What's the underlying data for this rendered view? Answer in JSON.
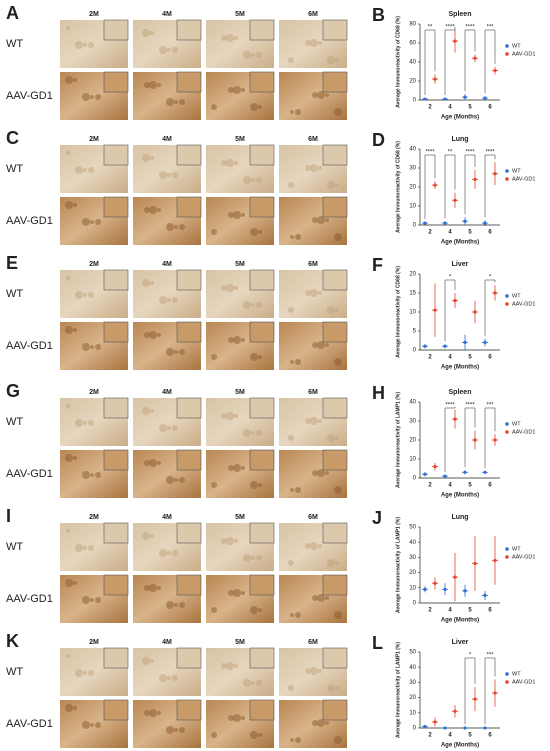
{
  "figure": {
    "image_panels": [
      {
        "letter": "A",
        "columns": [
          "2M",
          "4M",
          "5M",
          "6M"
        ],
        "rows": [
          "WT",
          "AAV-GD1"
        ]
      },
      {
        "letter": "C",
        "columns": [
          "2M",
          "4M",
          "5M",
          "6M"
        ],
        "rows": [
          "WT",
          "AAV-GD1"
        ]
      },
      {
        "letter": "E",
        "columns": [
          "2M",
          "4M",
          "5M",
          "6M"
        ],
        "rows": [
          "WT",
          "AAV-GD1"
        ]
      },
      {
        "letter": "G",
        "columns": [
          "2M",
          "4M",
          "5M",
          "6M"
        ],
        "rows": [
          "WT",
          "AAV-GD1"
        ]
      },
      {
        "letter": "I",
        "columns": [
          "2M",
          "4M",
          "5M",
          "6M"
        ],
        "rows": [
          "WT",
          "AAV-GD1"
        ]
      },
      {
        "letter": "K",
        "columns": [
          "2M",
          "4M",
          "5M",
          "6M"
        ],
        "rows": [
          "WT",
          "AAV-GD1"
        ]
      }
    ]
  },
  "chart_data": [
    {
      "type": "dot",
      "panel_label": "B",
      "title": "Spleen",
      "x_label": "Age (Months)",
      "y_label": "Average Immunoreactivity of CD68 (%)",
      "categories": [
        "2",
        "4",
        "5",
        "6"
      ],
      "ylim": [
        0,
        80
      ],
      "yticks": [
        0,
        20,
        40,
        60,
        80
      ],
      "series": [
        {
          "name": "WT",
          "color": "#2f6fd6",
          "values": [
            1,
            1,
            3,
            2
          ],
          "errors": [
            1,
            1,
            3,
            2
          ]
        },
        {
          "name": "AAV-GD1",
          "color": "#e8432b",
          "values": [
            22,
            62,
            44,
            31
          ],
          "errors": [
            5,
            12,
            4,
            4
          ]
        }
      ],
      "significance": [
        "**",
        "****",
        "****",
        "***"
      ]
    },
    {
      "type": "dot",
      "panel_label": "D",
      "title": "Lung",
      "x_label": "Age (Months)",
      "y_label": "Average Immunoreactivity of CD68 (%)",
      "categories": [
        "2",
        "4",
        "5",
        "6"
      ],
      "ylim": [
        0,
        40
      ],
      "yticks": [
        0,
        10,
        20,
        30,
        40
      ],
      "series": [
        {
          "name": "WT",
          "color": "#2f6fd6",
          "values": [
            1,
            1,
            2,
            1
          ],
          "errors": [
            0.5,
            1,
            2,
            1.5
          ]
        },
        {
          "name": "AAV-GD1",
          "color": "#e8432b",
          "values": [
            21,
            13,
            24,
            27
          ],
          "errors": [
            2,
            4,
            5,
            6
          ]
        }
      ],
      "significance": [
        "****",
        "**",
        "****",
        "****"
      ]
    },
    {
      "type": "dot",
      "panel_label": "F",
      "title": "Liver",
      "x_label": "Age (Months)",
      "y_label": "Average Immunoreactivity of CD68 (%)",
      "categories": [
        "2",
        "4",
        "5",
        "6"
      ],
      "ylim": [
        0,
        20
      ],
      "yticks": [
        0,
        5,
        10,
        15,
        20
      ],
      "series": [
        {
          "name": "WT",
          "color": "#2f6fd6",
          "values": [
            1,
            1,
            2,
            2
          ],
          "errors": [
            0.5,
            0.5,
            2,
            1
          ]
        },
        {
          "name": "AAV-GD1",
          "color": "#e8432b",
          "values": [
            10.5,
            13,
            10,
            15
          ],
          "errors": [
            7,
            2,
            3,
            2
          ]
        }
      ],
      "significance": [
        null,
        "*",
        null,
        "*"
      ]
    },
    {
      "type": "dot",
      "panel_label": "H",
      "title": "Spleen",
      "x_label": "Age (Months)",
      "y_label": "Average Immunoreactivity of LAMP1 (%)",
      "categories": [
        "2",
        "4",
        "5",
        "6"
      ],
      "ylim": [
        0,
        40
      ],
      "yticks": [
        0,
        10,
        20,
        30,
        40
      ],
      "series": [
        {
          "name": "WT",
          "color": "#2f6fd6",
          "values": [
            2,
            1,
            3,
            3
          ],
          "errors": [
            1,
            0.5,
            1,
            0.5
          ]
        },
        {
          "name": "AAV-GD1",
          "color": "#e8432b",
          "values": [
            6,
            31,
            20,
            20
          ],
          "errors": [
            2,
            5,
            5,
            3
          ]
        }
      ],
      "significance": [
        null,
        "****",
        "****",
        "***"
      ]
    },
    {
      "type": "dot",
      "panel_label": "J",
      "title": "Lung",
      "x_label": "Age (Months)",
      "y_label": "Average Immunoreactivity of LAMP1 (%)",
      "categories": [
        "2",
        "4",
        "5",
        "6"
      ],
      "ylim": [
        0,
        50
      ],
      "yticks": [
        0,
        10,
        20,
        30,
        40,
        50
      ],
      "series": [
        {
          "name": "WT",
          "color": "#2f6fd6",
          "values": [
            9,
            9,
            8,
            5
          ],
          "errors": [
            2,
            4,
            4,
            3
          ]
        },
        {
          "name": "AAV-GD1",
          "color": "#e8432b",
          "values": [
            13,
            17,
            26,
            28
          ],
          "errors": [
            4,
            16,
            18,
            16
          ]
        }
      ],
      "significance": [
        null,
        null,
        null,
        null
      ]
    },
    {
      "type": "dot",
      "panel_label": "L",
      "title": "Liver",
      "x_label": "Age (Months)",
      "y_label": "Average Immunoreactivity of LAMP1 (%)",
      "categories": [
        "2",
        "4",
        "5",
        "6"
      ],
      "ylim": [
        0,
        50
      ],
      "yticks": [
        0,
        10,
        20,
        30,
        40,
        50
      ],
      "series": [
        {
          "name": "WT",
          "color": "#2f6fd6",
          "values": [
            1,
            0,
            0,
            0
          ],
          "errors": [
            1,
            0.5,
            0.5,
            0.5
          ]
        },
        {
          "name": "AAV-GD1",
          "color": "#e8432b",
          "values": [
            4,
            11,
            19,
            23
          ],
          "errors": [
            3,
            4,
            8,
            9
          ]
        }
      ],
      "significance": [
        null,
        null,
        "*",
        "***"
      ]
    }
  ]
}
